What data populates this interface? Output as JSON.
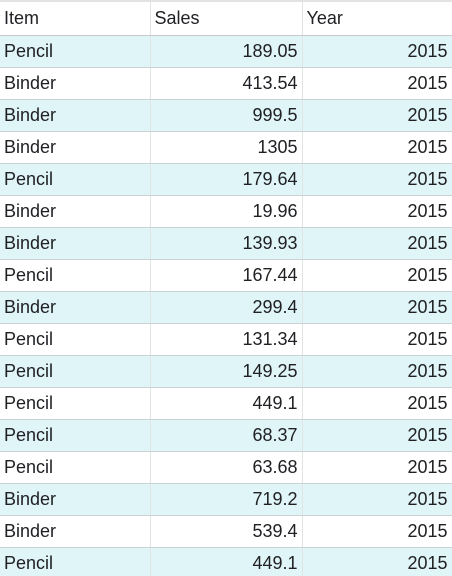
{
  "table": {
    "headers": [
      "Item",
      "Sales",
      "Year"
    ],
    "rows": [
      {
        "item": "Pencil",
        "sales": "189.05",
        "year": "2015"
      },
      {
        "item": "Binder",
        "sales": "413.54",
        "year": "2015"
      },
      {
        "item": "Binder",
        "sales": "999.5",
        "year": "2015"
      },
      {
        "item": "Binder",
        "sales": "1305",
        "year": "2015"
      },
      {
        "item": "Pencil",
        "sales": "179.64",
        "year": "2015"
      },
      {
        "item": "Binder",
        "sales": "19.96",
        "year": "2015"
      },
      {
        "item": "Binder",
        "sales": "139.93",
        "year": "2015"
      },
      {
        "item": "Pencil",
        "sales": "167.44",
        "year": "2015"
      },
      {
        "item": "Binder",
        "sales": "299.4",
        "year": "2015"
      },
      {
        "item": "Pencil",
        "sales": "131.34",
        "year": "2015"
      },
      {
        "item": "Pencil",
        "sales": "149.25",
        "year": "2015"
      },
      {
        "item": "Pencil",
        "sales": "449.1",
        "year": "2015"
      },
      {
        "item": "Pencil",
        "sales": "68.37",
        "year": "2015"
      },
      {
        "item": "Pencil",
        "sales": "63.68",
        "year": "2015"
      },
      {
        "item": "Binder",
        "sales": "719.2",
        "year": "2015"
      },
      {
        "item": "Binder",
        "sales": "539.4",
        "year": "2015"
      },
      {
        "item": "Pencil",
        "sales": "449.1",
        "year": "2015"
      }
    ]
  },
  "colors": {
    "band": "#e0f5f8",
    "plain": "#ffffff",
    "text": "#202124"
  }
}
